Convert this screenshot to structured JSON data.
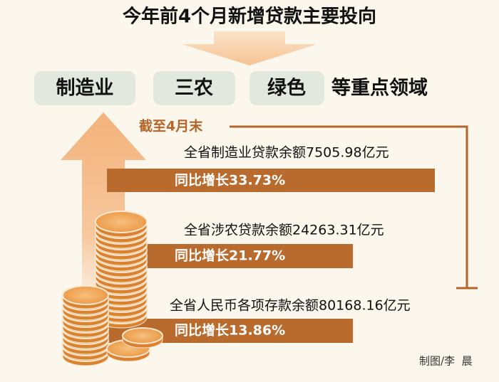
{
  "title": "今年前4个月新增贷款主要投向",
  "tags": [
    "制造业",
    "三农",
    "绿色"
  ],
  "tags_suffix": "等重点领域",
  "date_label": "截至4月末",
  "items": [
    {
      "text": "全省制造业贷款余额7505.98亿元",
      "growth": "同比增长33.73%"
    },
    {
      "text": "全省涉农贷款余额24263.31亿元",
      "growth": "同比增长21.77%"
    },
    {
      "text": "全省人民币各项存款余额80168.16亿元",
      "growth": "同比增长13.86%"
    }
  ],
  "credit": "制图/李  晨"
}
